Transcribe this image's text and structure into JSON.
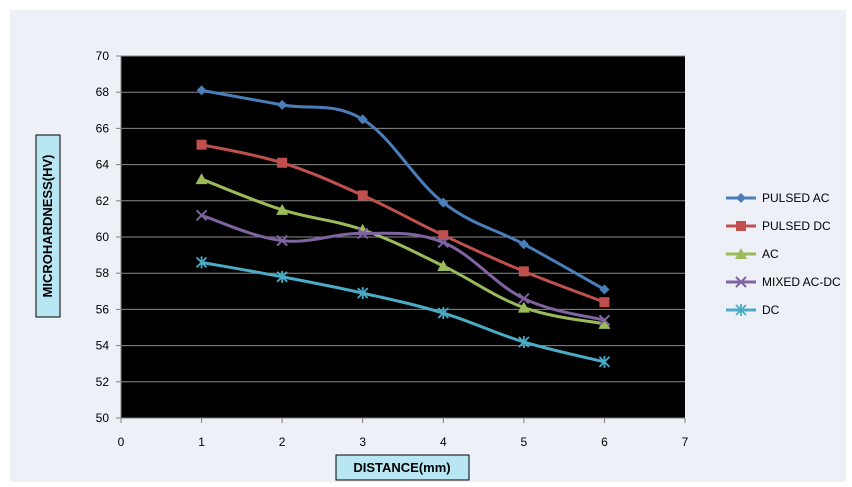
{
  "chart_data": {
    "type": "line",
    "title": "",
    "xlabel": "DISTANCE(mm)",
    "ylabel": "MICROHARDNESS(HV)",
    "xlim": [
      0,
      7
    ],
    "ylim": [
      50,
      70
    ],
    "x_ticks": [
      0,
      1,
      2,
      3,
      4,
      5,
      6,
      7
    ],
    "y_ticks": [
      50,
      52,
      54,
      56,
      58,
      60,
      62,
      64,
      66,
      68,
      70
    ],
    "grid": "horizontal",
    "legend_position": "right",
    "plot_background": "#000000",
    "chart_background": "#eef0f8",
    "x": [
      1,
      2,
      3,
      4,
      5,
      6
    ],
    "series": [
      {
        "name": "PULSED AC",
        "color": "#4a7ebb",
        "marker": "diamond",
        "values": [
          68.1,
          67.3,
          66.5,
          61.9,
          59.6,
          57.1
        ]
      },
      {
        "name": "PULSED DC",
        "color": "#c0504d",
        "marker": "square",
        "values": [
          65.1,
          64.1,
          62.3,
          60.1,
          58.1,
          56.4
        ]
      },
      {
        "name": "AC",
        "color": "#9bbb59",
        "marker": "triangle",
        "values": [
          63.2,
          61.5,
          60.4,
          58.4,
          56.1,
          55.2
        ]
      },
      {
        "name": "MIXED AC-DC",
        "color": "#8064a2",
        "marker": "x",
        "values": [
          61.2,
          59.8,
          60.2,
          59.7,
          56.6,
          55.4
        ]
      },
      {
        "name": "DC",
        "color": "#4bacc6",
        "marker": "star",
        "values": [
          58.6,
          57.8,
          56.9,
          55.8,
          54.2,
          53.1
        ]
      }
    ]
  }
}
